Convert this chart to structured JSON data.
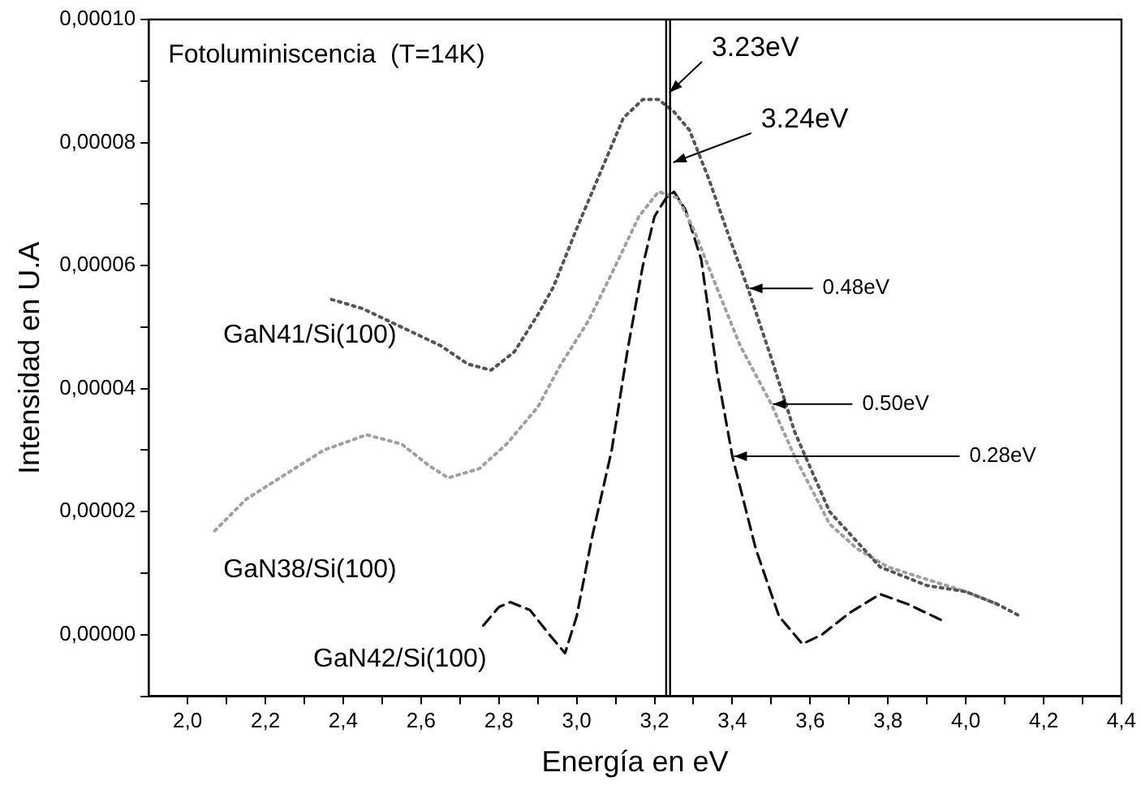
{
  "chart_data": {
    "type": "line",
    "xlabel": "Energía en eV",
    "ylabel": "Intensidad en U.A",
    "xlim": [
      1.9,
      4.4
    ],
    "ylim": [
      -1e-05,
      0.0001
    ],
    "xticks": [
      {
        "value": 2.0,
        "label": "2,0"
      },
      {
        "value": 2.1,
        "label": null
      },
      {
        "value": 2.2,
        "label": "2,2"
      },
      {
        "value": 2.3,
        "label": null
      },
      {
        "value": 2.4,
        "label": "2,4"
      },
      {
        "value": 2.5,
        "label": null
      },
      {
        "value": 2.6,
        "label": "2,6"
      },
      {
        "value": 2.7,
        "label": null
      },
      {
        "value": 2.8,
        "label": "2,8"
      },
      {
        "value": 2.9,
        "label": null
      },
      {
        "value": 3.0,
        "label": "3,0"
      },
      {
        "value": 3.1,
        "label": null
      },
      {
        "value": 3.2,
        "label": "3,2"
      },
      {
        "value": 3.3,
        "label": null
      },
      {
        "value": 3.4,
        "label": "3,4"
      },
      {
        "value": 3.5,
        "label": null
      },
      {
        "value": 3.6,
        "label": "3,6"
      },
      {
        "value": 3.7,
        "label": null
      },
      {
        "value": 3.8,
        "label": "3,8"
      },
      {
        "value": 3.9,
        "label": null
      },
      {
        "value": 4.0,
        "label": "4,0"
      },
      {
        "value": 4.1,
        "label": null
      },
      {
        "value": 4.2,
        "label": "4,2"
      },
      {
        "value": 4.3,
        "label": null
      },
      {
        "value": 4.4,
        "label": "4,4"
      }
    ],
    "yticks": [
      {
        "value": -1e-05,
        "label": null
      },
      {
        "value": 0,
        "label": "0,00000"
      },
      {
        "value": 1e-05,
        "label": null
      },
      {
        "value": 2e-05,
        "label": "0,00002"
      },
      {
        "value": 3e-05,
        "label": null
      },
      {
        "value": 4e-05,
        "label": "0,00004"
      },
      {
        "value": 5e-05,
        "label": null
      },
      {
        "value": 6e-05,
        "label": "0,00006"
      },
      {
        "value": 7e-05,
        "label": null
      },
      {
        "value": 8e-05,
        "label": "0,00008"
      },
      {
        "value": 9e-05,
        "label": null
      },
      {
        "value": 0.0001,
        "label": "0,00010"
      }
    ],
    "grid": false,
    "legend": false,
    "marker": "none",
    "series": [
      {
        "name": "GaN41/Si(100)",
        "color": "#555555",
        "line_style": "dotted",
        "x": [
          2.37,
          2.45,
          2.55,
          2.65,
          2.72,
          2.78,
          2.84,
          2.9,
          2.94,
          3.0,
          3.06,
          3.12,
          3.17,
          3.21,
          3.25,
          3.29,
          3.34,
          3.39,
          3.44,
          3.5,
          3.56,
          3.65,
          3.78,
          3.9,
          4.0,
          4.08,
          4.14
        ],
        "values": [
          5.45e-05,
          5.3e-05,
          5e-05,
          4.7e-05,
          4.4e-05,
          4.3e-05,
          4.6e-05,
          5.2e-05,
          5.65e-05,
          6.6e-05,
          7.5e-05,
          8.4e-05,
          8.7e-05,
          8.7e-05,
          8.5e-05,
          8.2e-05,
          7.4e-05,
          6.5e-05,
          5.63e-05,
          4.5e-05,
          3.3e-05,
          2e-05,
          1.1e-05,
          8e-06,
          7e-06,
          5e-06,
          3e-06
        ]
      },
      {
        "name": "GaN38/Si(100)",
        "color": "#a0a0a0",
        "line_style": "dotted",
        "x": [
          2.07,
          2.15,
          2.25,
          2.35,
          2.46,
          2.55,
          2.62,
          2.67,
          2.75,
          2.82,
          2.9,
          2.96,
          3.03,
          3.1,
          3.16,
          3.21,
          3.26,
          3.3,
          3.35,
          3.42,
          3.5,
          3.56,
          3.65,
          3.72,
          3.8,
          3.9,
          4.0,
          4.08
        ],
        "values": [
          1.69e-05,
          2.2e-05,
          2.6e-05,
          3e-05,
          3.25e-05,
          3.1e-05,
          2.75e-05,
          2.55e-05,
          2.7e-05,
          3.1e-05,
          3.7e-05,
          4.4e-05,
          5.1e-05,
          6e-05,
          6.8e-05,
          7.2e-05,
          7.1e-05,
          6.6e-05,
          5.8e-05,
          4.7e-05,
          3.75e-05,
          2.9e-05,
          1.8e-05,
          1.4e-05,
          1.1e-05,
          9e-06,
          7e-06,
          5e-06
        ]
      },
      {
        "name": "GaN42/Si(100)",
        "color": "#111111",
        "line_style": "dashed",
        "x": [
          2.76,
          2.8,
          2.83,
          2.88,
          2.93,
          2.97,
          3.0,
          3.04,
          3.09,
          3.13,
          3.17,
          3.2,
          3.23,
          3.25,
          3.28,
          3.32,
          3.36,
          3.4,
          3.46,
          3.52,
          3.58,
          3.63,
          3.7,
          3.78,
          3.85,
          3.9,
          3.95
        ],
        "values": [
          1.5e-06,
          4.5e-06,
          5.3e-06,
          4e-06,
          0.0,
          -3e-06,
          3e-06,
          1.6e-05,
          3e-05,
          4.6e-05,
          6e-05,
          6.8e-05,
          7.1e-05,
          7.2e-05,
          6.9e-05,
          6.1e-05,
          4.3e-05,
          2.9e-05,
          1.4e-05,
          3e-06,
          -1.5e-06,
          0.0,
          3.5e-06,
          6.6e-06,
          5e-06,
          3.5e-06,
          2e-06
        ]
      }
    ],
    "ref_lines": [
      {
        "axis": "x",
        "value": 3.23,
        "label": "3.23eV",
        "color": "#000000"
      },
      {
        "axis": "x",
        "value": 3.24,
        "label": "3.24eV",
        "color": "#000000"
      }
    ],
    "annotations": [
      "Fotoluminiscencia  (T=14K)",
      {
        "text": "0.48eV",
        "x": 3.44,
        "y": 5.63e-05
      },
      {
        "text": "0.50eV",
        "x": 3.5,
        "y": 3.75e-05
      },
      {
        "text": "0.28eV",
        "x": 3.4,
        "y": 2.9e-05
      }
    ]
  }
}
